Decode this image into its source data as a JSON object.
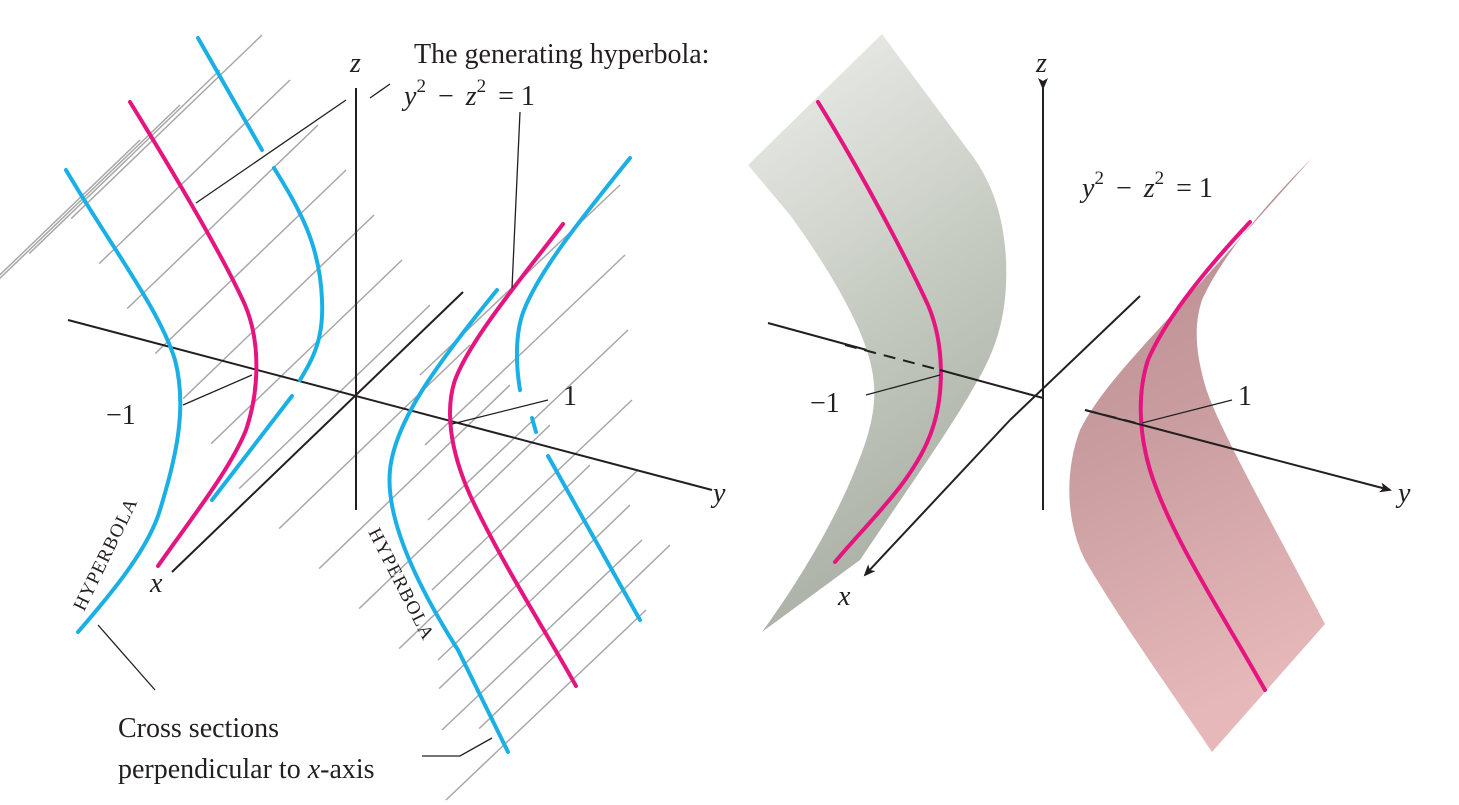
{
  "colors": {
    "cross_section": "#1ab0e6",
    "generating_curve": "#e6147f",
    "surface_left": "#c6cbc2",
    "surface_right": "#c99da0",
    "axis": "#231f20",
    "grid": "#a8a8a8"
  },
  "left_figure": {
    "axis_z": "z",
    "axis_y": "y",
    "axis_x": "x",
    "generating_title": "The generating hyperbola:",
    "equation_base_y": "y",
    "equation_base_z": "z",
    "equation_exp": "2",
    "equation_rest": "= 1",
    "equation_minus": "−",
    "tick_neg": "−1",
    "tick_pos": "1",
    "hyperbola_label_a": "HYPERBOLA",
    "hyperbola_label_b": "HYPERBOLA",
    "caption_line1": "Cross sections",
    "caption_line2_a": "perpendicular to ",
    "caption_line2_b": "x",
    "caption_line2_c": "-axis"
  },
  "right_figure": {
    "axis_z": "z",
    "axis_y": "y",
    "axis_x": "x",
    "equation_base_y": "y",
    "equation_base_z": "z",
    "equation_exp": "2",
    "equation_rest": "= 1",
    "equation_minus": "−",
    "tick_neg": "−1",
    "tick_pos": "1"
  }
}
